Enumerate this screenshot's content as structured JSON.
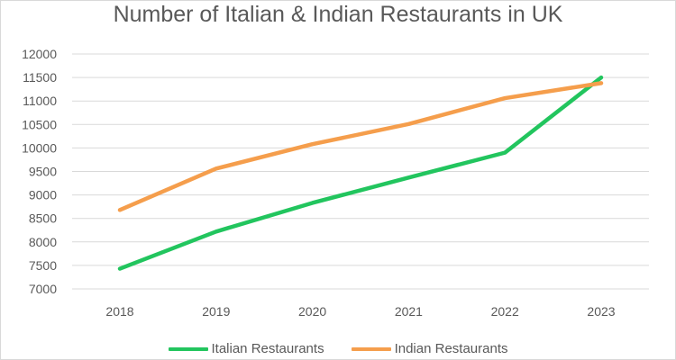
{
  "chart_data": {
    "type": "line",
    "title": "Number of Italian & Indian Restaurants in UK",
    "categories": [
      "2018",
      "2019",
      "2020",
      "2021",
      "2022",
      "2023"
    ],
    "series": [
      {
        "name": "Italian Restaurants",
        "color": "#22c55e",
        "values": [
          7430,
          8220,
          8830,
          9370,
          9900,
          11500
        ]
      },
      {
        "name": "Indian Restaurants",
        "color": "#f59e4c",
        "values": [
          8680,
          9560,
          10080,
          10510,
          11060,
          11380
        ]
      }
    ],
    "ylim": [
      7000,
      12000
    ],
    "yticks": [
      "7000",
      "7500",
      "8000",
      "8500",
      "9000",
      "9500",
      "10000",
      "10500",
      "11000",
      "11500",
      "12000"
    ],
    "grid": true,
    "legend": "bottom"
  }
}
